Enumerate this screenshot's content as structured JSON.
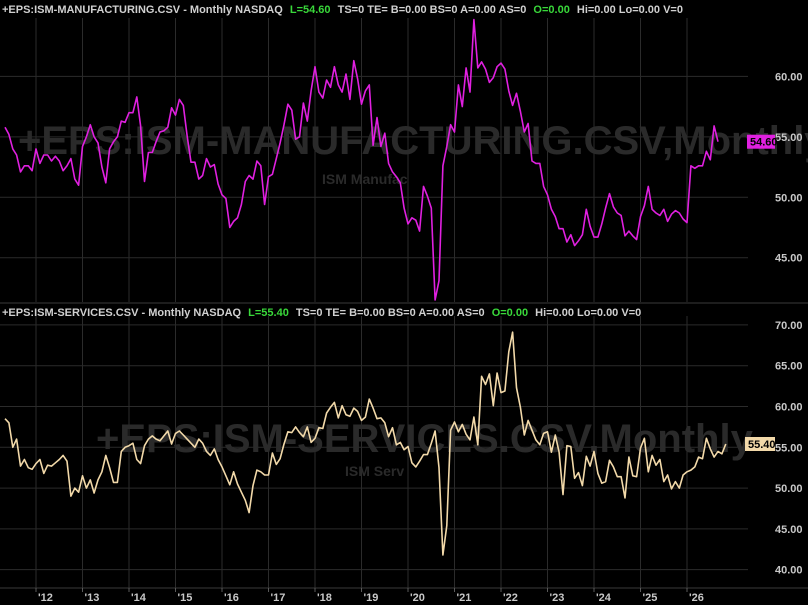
{
  "colors": {
    "background": "#000000",
    "grid": "#2b2b2b",
    "axis_text": "#c8c8c8",
    "header_text": "#d0d0d0",
    "header_green": "#39d83a",
    "manufacturing_line": "#e020e0",
    "services_line": "#f2d9a9",
    "watermark": "#2a2a2a"
  },
  "header_top": {
    "symbol": "+EPS:ISM-MANUFACTURING.CSV - Monthly  NASDAQ",
    "last": "L=54.60",
    "rest1": "TS=0  TE=  B=0.00  BS=0  A=0.00  AS=0",
    "open": "O=0.00",
    "rest2": "Hi=0.00  Lo=0.00  V=0"
  },
  "header_bottom": {
    "symbol": "+EPS:ISM-SERVICES.CSV - Monthly  NASDAQ",
    "last": "L=55.40",
    "rest1": "TS=0  TE=  B=0.00  BS=0  A=0.00  AS=0",
    "open": "O=0.00",
    "rest2": "Hi=0.00  Lo=0.00  V=0"
  },
  "watermark_top": {
    "main": "+EPS:ISM-MANUFACTURING.CSV,Monthly",
    "sub": "ISM Manufac"
  },
  "watermark_bottom": {
    "main": "+EPS:ISM-SERVICES.CSV,Monthly",
    "sub": "ISM Serv"
  },
  "price_tags": {
    "top": "54.60",
    "bottom": "55.40"
  },
  "chart_data": [
    {
      "type": "line",
      "name": "ISM-MANUFACTURING",
      "x_start": "2011-05",
      "frequency": "monthly",
      "ylim": [
        41.5,
        64.5
      ],
      "yticks": [
        "60.00",
        "55.00",
        "50.00",
        "45.00"
      ],
      "ytick_values": [
        60,
        55,
        50,
        45
      ],
      "last_value": 54.6,
      "values": [
        55.8,
        55.2,
        54.0,
        53.5,
        52.1,
        52.6,
        52.6,
        52.2,
        54.0,
        52.8,
        53.5,
        53.5,
        53.0,
        53.4,
        53.0,
        52.2,
        52.6,
        53.2,
        51.5,
        51.0,
        54.2,
        55.0,
        56.0,
        55.0,
        54.5,
        52.5,
        51.2,
        54.0,
        54.6,
        55.0,
        56.3,
        56.2,
        57.0,
        57.0,
        58.3,
        55.9,
        51.3,
        53.7,
        53.7,
        54.6,
        55.4,
        55.5,
        55.8,
        57.4,
        56.8,
        58.1,
        57.6,
        55.1,
        52.9,
        52.9,
        51.5,
        51.8,
        53.2,
        52.5,
        52.7,
        51.1,
        50.2,
        49.9,
        47.5,
        48.0,
        48.3,
        49.4,
        51.3,
        51.8,
        51.5,
        53.0,
        52.6,
        49.4,
        51.7,
        51.9,
        53.2,
        54.5,
        56.0,
        57.7,
        57.2,
        54.8,
        55.0,
        57.8,
        56.3,
        58.8,
        60.8,
        58.7,
        58.2,
        59.7,
        59.1,
        60.8,
        59.3,
        58.7,
        60.2,
        58.1,
        61.3,
        59.8,
        57.7,
        58.8,
        59.3,
        54.3,
        56.6,
        54.2,
        55.3,
        52.8,
        52.1,
        51.7,
        51.2,
        49.1,
        47.8,
        48.3,
        48.1,
        47.2,
        50.9,
        50.1,
        49.1,
        41.5,
        43.1,
        52.6,
        54.2,
        56.0,
        55.4,
        59.3,
        57.5,
        60.7,
        58.7,
        64.7,
        60.7,
        61.2,
        60.6,
        59.5,
        59.9,
        60.8,
        61.1,
        60.6,
        58.8,
        57.6,
        58.6,
        57.1,
        55.4,
        56.1,
        53.0,
        52.8,
        52.8,
        50.9,
        50.2,
        49.0,
        48.4,
        47.4,
        47.4,
        46.3,
        46.9,
        46.0,
        46.4,
        46.9,
        49.0,
        47.6,
        46.7,
        46.7,
        47.8,
        49.1,
        50.3,
        49.2,
        48.7,
        48.5,
        46.8,
        47.2,
        46.8,
        46.5,
        48.4,
        49.3,
        50.9,
        49.0,
        48.7,
        48.5,
        49.0,
        48.0,
        48.6,
        48.9,
        48.7,
        48.2,
        47.9,
        52.6,
        52.4,
        52.6,
        52.6,
        53.8,
        53.1,
        55.9,
        54.6
      ]
    },
    {
      "type": "line",
      "name": "ISM-SERVICES",
      "x_start": "2011-05",
      "frequency": "monthly",
      "ylim": [
        38.0,
        70.6
      ],
      "yticks": [
        "70.00",
        "65.00",
        "60.00",
        "55.00",
        "50.00",
        "45.00",
        "40.00"
      ],
      "ytick_values": [
        70,
        65,
        60,
        55,
        50,
        45,
        40
      ],
      "xtick_labels": [
        "'12",
        "'13",
        "'14",
        "'15",
        "'16",
        "'17",
        "'18",
        "'19",
        "'20",
        "'21",
        "'22",
        "'23",
        "'24",
        "'25",
        "'26"
      ],
      "xtick_values": [
        "2012-01",
        "2013-01",
        "2014-01",
        "2015-01",
        "2016-01",
        "2017-01",
        "2018-01",
        "2019-01",
        "2020-01",
        "2021-01",
        "2022-01",
        "2023-01",
        "2024-01",
        "2025-01",
        "2026-01"
      ],
      "last_value": 55.4,
      "values": [
        58.5,
        58.0,
        55.0,
        56.0,
        52.7,
        53.5,
        52.5,
        52.3,
        53.0,
        53.5,
        51.8,
        52.8,
        52.7,
        53.1,
        53.5,
        54.0,
        53.3,
        49.0,
        50.0,
        49.5,
        51.5,
        50.0,
        51.0,
        49.4,
        51.0,
        52.0,
        54.0,
        52.5,
        50.7,
        50.7,
        54.5,
        55.0,
        55.2,
        55.5,
        53.5,
        53.0,
        55.2,
        56.0,
        56.4,
        56.0,
        55.8,
        56.4,
        57.0,
        55.4,
        56.7,
        57.0,
        56.5,
        56.0,
        55.5,
        55.0,
        56.0,
        55.5,
        54.5,
        54.0,
        54.8,
        53.5,
        52.6,
        51.5,
        50.4,
        52.0,
        50.5,
        49.5,
        48.5,
        47.0,
        50.3,
        52.2,
        52.0,
        51.6,
        51.6,
        54.3,
        52.9,
        53.6,
        55.4,
        56.9,
        56.8,
        57.5,
        56.8,
        56.3,
        57.5,
        55.6,
        56.1,
        57.4,
        57.3,
        59.2,
        59.9,
        60.5,
        58.6,
        60.1,
        59.0,
        58.8,
        59.8,
        59.4,
        58.3,
        58.7,
        60.9,
        59.8,
        58.5,
        58.6,
        58.0,
        56.3,
        57.4,
        55.3,
        55.6,
        54.7,
        55.1,
        53.1,
        52.6,
        53.3,
        54.1,
        54.1,
        55.5,
        57.0,
        52.5,
        41.8,
        45.4,
        57.1,
        58.1,
        56.9,
        57.8,
        56.6,
        55.9,
        58.7,
        55.3,
        63.7,
        62.7,
        64.0,
        60.1,
        64.1,
        61.7,
        61.9,
        66.7,
        69.1,
        62.3,
        59.9,
        56.5,
        58.3,
        57.1,
        55.9,
        55.3,
        56.7,
        56.9,
        54.4,
        56.5,
        54.4,
        49.2,
        55.2,
        55.1,
        51.2,
        51.9,
        50.3,
        53.9,
        52.7,
        54.5,
        51.8,
        50.6,
        50.8,
        53.4,
        52.6,
        51.4,
        51.4,
        48.8,
        53.8,
        51.5,
        51.4,
        54.9,
        56.1,
        52.0,
        54.0,
        52.8,
        53.5,
        50.8,
        51.6,
        49.9,
        50.8,
        50.0,
        51.6,
        52.0,
        52.2,
        52.6,
        53.8,
        53.6,
        56.1,
        54.8,
        53.8,
        54.5,
        54.2,
        55.4
      ]
    }
  ]
}
